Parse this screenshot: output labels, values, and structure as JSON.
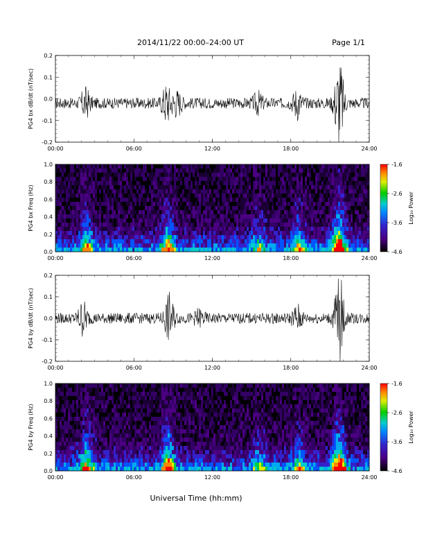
{
  "header": {
    "title": "2014/11/22  00:00–24:00 UT",
    "page": "Page 1/1"
  },
  "x_axis": {
    "ticks": [
      "00:00",
      "06:00",
      "12:00",
      "18:00",
      "24:00"
    ],
    "label": "Universal Time (hh:mm)"
  },
  "colorbar": {
    "ticks": [
      "-1.6",
      "-2.6",
      "-3.6",
      "-4.6"
    ],
    "label": "Log₁₀ Power"
  },
  "chart_data": [
    {
      "type": "line",
      "ylabel": "PG4 bx dB/dt (nT/sec)",
      "xlim": [
        0,
        24
      ],
      "ylim": [
        -0.2,
        0.2
      ],
      "yticks": [
        "0.2",
        "0.1",
        "0.0",
        "-0.1",
        "-0.2"
      ],
      "baseline": -0.02,
      "noise_amplitude": 0.025,
      "bursts": [
        {
          "t": 2.3,
          "amp": 0.06
        },
        {
          "t": 8.5,
          "amp": 0.08
        },
        {
          "t": 9.3,
          "amp": 0.05
        },
        {
          "t": 15.5,
          "amp": 0.04
        },
        {
          "t": 18.5,
          "amp": 0.06
        },
        {
          "t": 21.7,
          "amp": 0.2
        }
      ],
      "grid": false
    },
    {
      "type": "heatmap",
      "ylabel": "PG4 bx Freq (Hz)",
      "xlim": [
        0,
        24
      ],
      "ylim": [
        0,
        1.0
      ],
      "yticks": [
        "1.0",
        "0.8",
        "0.6",
        "0.4",
        "0.2",
        "0.0"
      ],
      "color_scale": [
        -4.6,
        -1.6
      ],
      "activity": [
        {
          "t": 2.4,
          "strength": 0.6
        },
        {
          "t": 8.6,
          "strength": 0.7
        },
        {
          "t": 15.6,
          "strength": 0.4
        },
        {
          "t": 18.6,
          "strength": 0.5
        },
        {
          "t": 21.7,
          "strength": 1.0
        }
      ]
    },
    {
      "type": "line",
      "ylabel": "PG4 by dB/dt (nT/sec)",
      "xlim": [
        0,
        24
      ],
      "ylim": [
        -0.2,
        0.2
      ],
      "yticks": [
        "0.2",
        "0.1",
        "0.0",
        "-0.1",
        "-0.2"
      ],
      "baseline": 0.0,
      "noise_amplitude": 0.025,
      "bursts": [
        {
          "t": 2.1,
          "amp": 0.07
        },
        {
          "t": 8.7,
          "amp": 0.1
        },
        {
          "t": 11.0,
          "amp": 0.03
        },
        {
          "t": 18.5,
          "amp": 0.05
        },
        {
          "t": 21.7,
          "amp": 0.2
        }
      ],
      "grid": false
    },
    {
      "type": "heatmap",
      "ylabel": "PG4 by Freq (Hz)",
      "xlim": [
        0,
        24
      ],
      "ylim": [
        0,
        1.0
      ],
      "yticks": [
        "1.0",
        "0.8",
        "0.6",
        "0.4",
        "0.2",
        "0.0"
      ],
      "color_scale": [
        -4.6,
        -1.6
      ],
      "activity": [
        {
          "t": 2.4,
          "strength": 0.7
        },
        {
          "t": 8.6,
          "strength": 0.8
        },
        {
          "t": 15.6,
          "strength": 0.4
        },
        {
          "t": 18.6,
          "strength": 0.5
        },
        {
          "t": 21.7,
          "strength": 1.0
        }
      ]
    }
  ]
}
